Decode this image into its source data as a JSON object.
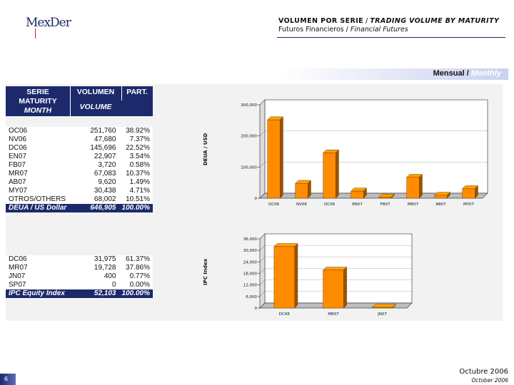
{
  "header": {
    "logo_text": "MexDer",
    "title_es": "VOLUMEN POR SERIE",
    "title_sep": " / ",
    "title_en": "TRADING VOLUME BY MATURITY",
    "subtitle_es": "Futuros Financieros",
    "subtitle_sep": " / ",
    "subtitle_en": "Financial Futures"
  },
  "band": {
    "label_es": "Mensual / ",
    "label_en": "Monthly"
  },
  "table_head": {
    "serie": "SERIE",
    "maturity": "MATURITY",
    "month": "MONTH",
    "volumen": "VOLUMEN",
    "volume": "VOLUME",
    "part": "PART."
  },
  "usd_table": {
    "rows": [
      {
        "serie": "OC06",
        "volume": "251,760",
        "part": "38.92%"
      },
      {
        "serie": "NV06",
        "volume": "47,680",
        "part": "7.37%"
      },
      {
        "serie": "DC06",
        "volume": "145,696",
        "part": "22.52%"
      },
      {
        "serie": "EN07",
        "volume": "22,907",
        "part": "3.54%"
      },
      {
        "serie": "FB07",
        "volume": "3,720",
        "part": "0.58%"
      },
      {
        "serie": "MR07",
        "volume": "67,083",
        "part": "10.37%"
      },
      {
        "serie": "AB07",
        "volume": "9,620",
        "part": "1.49%"
      },
      {
        "serie": "MY07",
        "volume": "30,438",
        "part": "4.71%"
      },
      {
        "serie": "OTROS/OTHERS",
        "volume": "68,002",
        "part": "10.51%"
      }
    ],
    "total": {
      "serie": "DEUA / US Dollar",
      "volume": "646,905",
      "part": "100.00%"
    }
  },
  "ipc_table": {
    "rows": [
      {
        "serie": "DC06",
        "volume": "31,975",
        "part": "61.37%"
      },
      {
        "serie": "MR07",
        "volume": "19,728",
        "part": "37.86%"
      },
      {
        "serie": "JN07",
        "volume": "400",
        "part": "0.77%"
      },
      {
        "serie": "SP07",
        "volume": "0",
        "part": "0.00%"
      }
    ],
    "total": {
      "serie": "IPC Equity Index",
      "volume": "52,103",
      "part": "100.00%"
    }
  },
  "chart_data": [
    {
      "type": "bar",
      "ylabel": "DEUA / USD",
      "categories": [
        "OC06",
        "NV06",
        "DC06",
        "EN07",
        "FB07",
        "MR07",
        "AB07",
        "MY07"
      ],
      "values": [
        251760,
        47680,
        145696,
        22907,
        3720,
        67083,
        9620,
        30438
      ],
      "ylim": [
        0,
        300000
      ],
      "yticks": [
        "0",
        "100,000",
        "200,000",
        "300,000"
      ],
      "bar_color": "#ff8c00"
    },
    {
      "type": "bar",
      "ylabel": "IPC Index",
      "categories": [
        "DC06",
        "MR07",
        "JN07"
      ],
      "values": [
        31975,
        19728,
        400
      ],
      "ylim": [
        0,
        36000
      ],
      "yticks": [
        "0",
        "6,000",
        "12,000",
        "18,000",
        "24,000",
        "30,000",
        "36,000"
      ],
      "bar_color": "#ff8c00"
    }
  ],
  "footer": {
    "month_es": "Octubre 2006",
    "month_en": "October 2006",
    "page": "6"
  }
}
